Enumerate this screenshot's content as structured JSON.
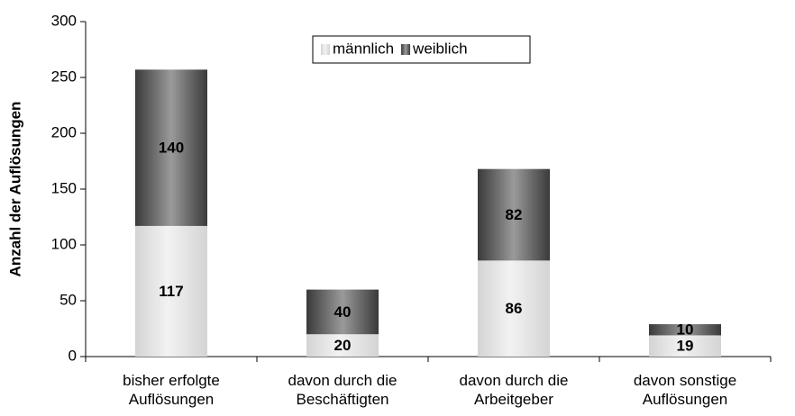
{
  "chart_data": {
    "type": "bar",
    "stacked": true,
    "ylabel": "Anzahl der Auflösungen",
    "categories": [
      "bisher erfolgte Auflösungen",
      "davon durch die Beschäftigten",
      "davon durch die Arbeitgeber",
      "davon sonstige Auflösungen"
    ],
    "series": [
      {
        "name": "männlich",
        "color": "#d4d4d4",
        "values": [
          117,
          20,
          86,
          19
        ]
      },
      {
        "name": "weiblich",
        "color": "#3a3a3a",
        "values": [
          140,
          40,
          82,
          10
        ]
      }
    ],
    "ylim": [
      0,
      300
    ],
    "yticks": [
      0,
      50,
      100,
      150,
      200,
      250,
      300
    ],
    "legend": "top"
  }
}
